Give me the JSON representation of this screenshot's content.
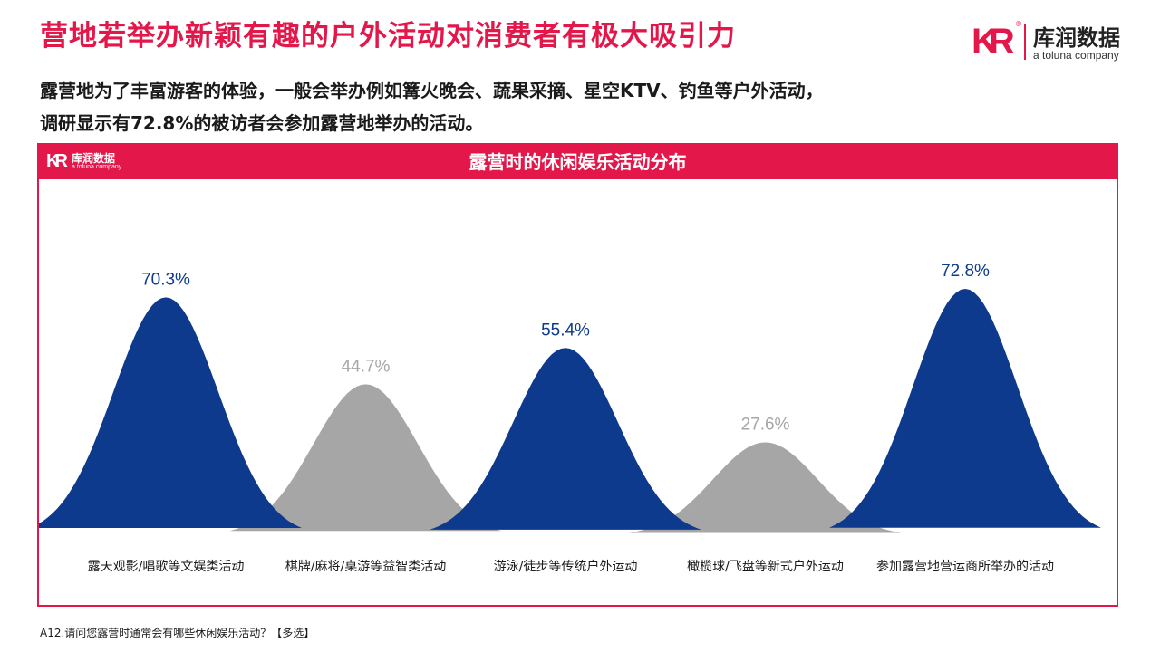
{
  "header": {
    "title": "营地若举办新颖有趣的户外活动对消费者有极大吸引力",
    "subtitle_lines": [
      "露营地为了丰富游客的体验，一般会举办例如篝火晚会、蔬果采摘、星空KTV、钓鱼等户外活动，",
      "调研显示有72.8%的被访者会参加露营地举办的活动。"
    ]
  },
  "brand": {
    "mark": "KR",
    "name": "库润数据",
    "sub": "a toluna company",
    "reg": "®"
  },
  "colors": {
    "accent": "#e4174a",
    "navy": "#0d3a8c",
    "gray": "#a6a6a6",
    "navy_label": "#0d3a8c",
    "gray_label": "#a6a6a6"
  },
  "chart_data": {
    "type": "area",
    "title": "露营时的休闲娱乐活动分布",
    "categories": [
      "露天观影/唱歌等文娱类活动",
      "棋牌/麻将/桌游等益智类活动",
      "游泳/徒步等传统户外运动",
      "橄榄球/飞盘等新式户外运动",
      "参加露营地营运商所举办的活动"
    ],
    "values": [
      70.3,
      44.7,
      55.4,
      27.6,
      72.8
    ],
    "value_labels": [
      "70.3%",
      "44.7%",
      "55.4%",
      "27.6%",
      "72.8%"
    ],
    "highlight": [
      "navy",
      "gray",
      "navy",
      "gray",
      "navy"
    ],
    "ylim": [
      0,
      80
    ],
    "xlabel": "",
    "ylabel": ""
  },
  "footnote": "A12.请问您露营时通常会有哪些休闲娱乐活动？【多选】"
}
